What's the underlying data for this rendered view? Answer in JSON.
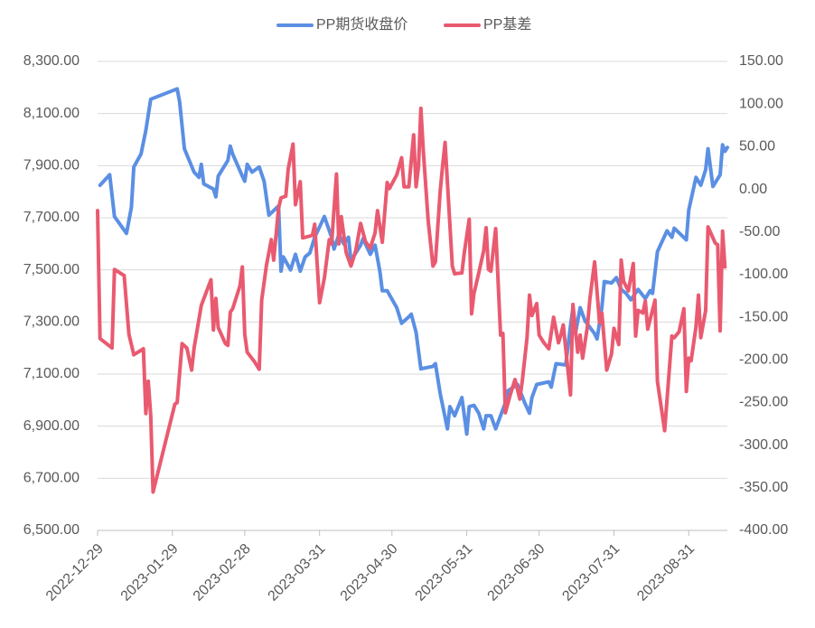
{
  "chart_data": {
    "type": "line",
    "xlim": [
      "2022-12-29",
      "2023-09-16"
    ],
    "xticks": [
      "2022-12-29",
      "2023-01-29",
      "2023-02-28",
      "2023-03-31",
      "2023-04-30",
      "2023-05-31",
      "2023-06-30",
      "2023-07-31",
      "2023-08-31"
    ],
    "ylim": [
      6500,
      8300
    ],
    "yticks": [
      {
        "value": 6500,
        "label": "6,500.00"
      },
      {
        "value": 6700,
        "label": "6,700.00"
      },
      {
        "value": 6900,
        "label": "6,900.00"
      },
      {
        "value": 7100,
        "label": "7,100.00"
      },
      {
        "value": 7300,
        "label": "7,300.00"
      },
      {
        "value": 7500,
        "label": "7,500.00"
      },
      {
        "value": 7700,
        "label": "7,700.00"
      },
      {
        "value": 7900,
        "label": "7,900.00"
      },
      {
        "value": 8100,
        "label": "8,100.00"
      },
      {
        "value": 8300,
        "label": "8,300.00"
      }
    ],
    "y2lim": [
      -400,
      150
    ],
    "y2ticks": [
      {
        "value": -400,
        "label": "-400.00"
      },
      {
        "value": -350,
        "label": "-350.00"
      },
      {
        "value": -300,
        "label": "-300.00"
      },
      {
        "value": -250,
        "label": "-250.00"
      },
      {
        "value": -200,
        "label": "-200.00"
      },
      {
        "value": -150,
        "label": "-150.00"
      },
      {
        "value": -100,
        "label": "-100.00"
      },
      {
        "value": -50,
        "label": "-50.00"
      },
      {
        "value": 0,
        "label": "0.00"
      },
      {
        "value": 50,
        "label": "50.00"
      },
      {
        "value": 100,
        "label": "100.00"
      },
      {
        "value": 150,
        "label": "150.00"
      }
    ],
    "grid": true,
    "legend": "top",
    "series": [
      {
        "name": "PP期货收盘价",
        "color": "#5B8FE3",
        "x": [
          "2022-12-30",
          "2023-01-03",
          "2023-01-05",
          "2023-01-10",
          "2023-01-12",
          "2023-01-13",
          "2023-01-16",
          "2023-01-18",
          "2023-01-20",
          "2023-01-31",
          "2023-02-01",
          "2023-02-03",
          "2023-02-07",
          "2023-02-09",
          "2023-02-10",
          "2023-02-11",
          "2023-02-15",
          "2023-02-16",
          "2023-02-17",
          "2023-02-21",
          "2023-02-22",
          "2023-02-23",
          "2023-02-27",
          "2023-02-28",
          "2023-03-01",
          "2023-03-03",
          "2023-03-06",
          "2023-03-08",
          "2023-03-10",
          "2023-03-14",
          "2023-03-15",
          "2023-03-16",
          "2023-03-19",
          "2023-03-21",
          "2023-03-23",
          "2023-03-25",
          "2023-03-27",
          "2023-03-29",
          "2023-04-01",
          "2023-04-02",
          "2023-04-05",
          "2023-04-06",
          "2023-04-08",
          "2023-04-10",
          "2023-04-12",
          "2023-04-13",
          "2023-04-17",
          "2023-04-18",
          "2023-04-21",
          "2023-04-23",
          "2023-04-25",
          "2023-04-26",
          "2023-04-28",
          "2023-05-02",
          "2023-05-04",
          "2023-05-07",
          "2023-05-08",
          "2023-05-10",
          "2023-05-12",
          "2023-05-17",
          "2023-05-18",
          "2023-05-20",
          "2023-05-23",
          "2023-05-24",
          "2023-05-26",
          "2023-05-29",
          "2023-05-31",
          "2023-06-01",
          "2023-06-03",
          "2023-06-05",
          "2023-06-07",
          "2023-06-08",
          "2023-06-10",
          "2023-06-12",
          "2023-06-14",
          "2023-06-16",
          "2023-06-17",
          "2023-06-21",
          "2023-06-24",
          "2023-06-26",
          "2023-06-27",
          "2023-06-29",
          "2023-07-04",
          "2023-07-05",
          "2023-07-06",
          "2023-07-07",
          "2023-07-11",
          "2023-07-13",
          "2023-07-14",
          "2023-07-15",
          "2023-07-17",
          "2023-07-19",
          "2023-07-23",
          "2023-07-24",
          "2023-07-26",
          "2023-07-27",
          "2023-07-30",
          "2023-08-01",
          "2023-08-03",
          "2023-08-05",
          "2023-08-07",
          "2023-08-10",
          "2023-08-13",
          "2023-08-15",
          "2023-08-16",
          "2023-08-18",
          "2023-08-22",
          "2023-08-24",
          "2023-08-25",
          "2023-08-30",
          "2023-08-31",
          "2023-09-03",
          "2023-09-05",
          "2023-09-07",
          "2023-09-08",
          "2023-09-10",
          "2023-09-13",
          "2023-09-14",
          "2023-09-15",
          "2023-09-16"
        ],
        "values": [
          7825,
          7865,
          7705,
          7640,
          7740,
          7895,
          7945,
          8035,
          8155,
          8195,
          8145,
          7965,
          7875,
          7855,
          7905,
          7830,
          7810,
          7780,
          7860,
          7920,
          7975,
          7945,
          7860,
          7840,
          7905,
          7875,
          7895,
          7840,
          7710,
          7745,
          7495,
          7550,
          7500,
          7560,
          7495,
          7550,
          7565,
          7625,
          7685,
          7705,
          7625,
          7580,
          7635,
          7600,
          7625,
          7535,
          7595,
          7620,
          7560,
          7595,
          7495,
          7420,
          7420,
          7355,
          7295,
          7320,
          7330,
          7260,
          7120,
          7130,
          7140,
          7025,
          6890,
          6975,
          6940,
          7010,
          6870,
          6975,
          6980,
          6950,
          6890,
          6940,
          6940,
          6890,
          6940,
          6990,
          7035,
          7060,
          6990,
          6950,
          7010,
          7060,
          7070,
          7050,
          7095,
          7140,
          7135,
          7285,
          7355,
          7255,
          7355,
          7305,
          7255,
          7235,
          7355,
          7455,
          7450,
          7470,
          7425,
          7410,
          7385,
          7425,
          7390,
          7420,
          7410,
          7570,
          7650,
          7625,
          7660,
          7615,
          7730,
          7855,
          7825,
          7885,
          7965,
          7820,
          7865,
          7980,
          7955,
          7970
        ]
      },
      {
        "name": "PP基差",
        "color": "#E95A70",
        "axis": "y2",
        "x": [
          "2022-12-29",
          "2022-12-30",
          "2023-01-04",
          "2023-01-05",
          "2023-01-09",
          "2023-01-11",
          "2023-01-13",
          "2023-01-17",
          "2023-01-18",
          "2023-01-19",
          "2023-01-20",
          "2023-01-21",
          "2023-01-30",
          "2023-01-31",
          "2023-02-02",
          "2023-02-04",
          "2023-02-06",
          "2023-02-07",
          "2023-02-10",
          "2023-02-14",
          "2023-02-15",
          "2023-02-16",
          "2023-02-17",
          "2023-02-20",
          "2023-02-21",
          "2023-02-22",
          "2023-02-23",
          "2023-02-26",
          "2023-02-27",
          "2023-02-28",
          "2023-03-01",
          "2023-03-04",
          "2023-03-06",
          "2023-03-07",
          "2023-03-09",
          "2023-03-11",
          "2023-03-12",
          "2023-03-14",
          "2023-03-15",
          "2023-03-17",
          "2023-03-18",
          "2023-03-20",
          "2023-03-21",
          "2023-03-23",
          "2023-03-24",
          "2023-03-28",
          "2023-03-29",
          "2023-03-31",
          "2023-04-02",
          "2023-04-04",
          "2023-04-05",
          "2023-04-07",
          "2023-04-08",
          "2023-04-09",
          "2023-04-11",
          "2023-04-13",
          "2023-04-15",
          "2023-04-17",
          "2023-04-19",
          "2023-04-21",
          "2023-04-23",
          "2023-04-24",
          "2023-04-26",
          "2023-04-28",
          "2023-04-29",
          "2023-05-02",
          "2023-05-04",
          "2023-05-05",
          "2023-05-07",
          "2023-05-09",
          "2023-05-10",
          "2023-05-11",
          "2023-05-12",
          "2023-05-13",
          "2023-05-15",
          "2023-05-17",
          "2023-05-18",
          "2023-05-20",
          "2023-05-21",
          "2023-05-22",
          "2023-05-25",
          "2023-05-26",
          "2023-05-29",
          "2023-05-30",
          "2023-06-01",
          "2023-06-02",
          "2023-06-03",
          "2023-06-05",
          "2023-06-07",
          "2023-06-08",
          "2023-06-09",
          "2023-06-10",
          "2023-06-12",
          "2023-06-14",
          "2023-06-15",
          "2023-06-16",
          "2023-06-18",
          "2023-06-20",
          "2023-06-22",
          "2023-06-23",
          "2023-06-25",
          "2023-06-26",
          "2023-06-27",
          "2023-06-29",
          "2023-06-30",
          "2023-07-02",
          "2023-07-04",
          "2023-07-06",
          "2023-07-08",
          "2023-07-09",
          "2023-07-10",
          "2023-07-13",
          "2023-07-14",
          "2023-07-16",
          "2023-07-17",
          "2023-07-18",
          "2023-07-20",
          "2023-07-21",
          "2023-07-23",
          "2023-07-25",
          "2023-07-26",
          "2023-07-28",
          "2023-07-30",
          "2023-07-31",
          "2023-08-02",
          "2023-08-03",
          "2023-08-04",
          "2023-08-06",
          "2023-08-08",
          "2023-08-09",
          "2023-08-10",
          "2023-08-12",
          "2023-08-13",
          "2023-08-14",
          "2023-08-17",
          "2023-08-18",
          "2023-08-21",
          "2023-08-24",
          "2023-08-25",
          "2023-08-27",
          "2023-08-29",
          "2023-08-30",
          "2023-08-31",
          "2023-09-01",
          "2023-09-03",
          "2023-09-04",
          "2023-09-05",
          "2023-09-07",
          "2023-09-08",
          "2023-09-11",
          "2023-09-12",
          "2023-09-13",
          "2023-09-14",
          "2023-09-15"
        ],
        "values": [
          -25,
          -175,
          -186,
          -94,
          -101,
          -170,
          -194,
          -187,
          -263,
          -225,
          -265,
          -355,
          -252,
          -250,
          -181,
          -186,
          -212,
          -186,
          -136,
          -106,
          -165,
          -128,
          -162,
          -181,
          -183,
          -144,
          -140,
          -113,
          -91,
          -170,
          -191,
          -202,
          -211,
          -130,
          -89,
          -59,
          -83,
          -22,
          -10,
          -8,
          24,
          53,
          -18,
          9,
          -57,
          -54,
          -41,
          -133,
          -104,
          -59,
          -64,
          18,
          -64,
          -32,
          -74,
          -90,
          -72,
          -40,
          -61,
          -69,
          -51,
          -25,
          -62,
          8,
          1,
          17,
          37,
          3,
          3,
          64,
          3,
          27,
          95,
          45,
          -37,
          -90,
          -85,
          -2,
          28,
          55,
          -90,
          -99,
          -98,
          -74,
          -35,
          -146,
          -122,
          -98,
          -72,
          -45,
          -94,
          -96,
          -46,
          -171,
          -169,
          -262,
          -241,
          -223,
          -246,
          -225,
          -174,
          -124,
          -148,
          -134,
          -171,
          -180,
          -187,
          -150,
          -180,
          -171,
          -159,
          -241,
          -135,
          -191,
          -171,
          -198,
          -161,
          -129,
          -85,
          -156,
          -145,
          -212,
          -193,
          -163,
          -182,
          -83,
          -108,
          -119,
          -87,
          -172,
          -142,
          -145,
          -131,
          -164,
          -130,
          -225,
          -283,
          -172,
          -174,
          -167,
          -140,
          -237,
          -198,
          -201,
          -161,
          -124,
          -174,
          -142,
          -44,
          -63,
          -65,
          -166,
          -49,
          -91
        ]
      }
    ]
  }
}
